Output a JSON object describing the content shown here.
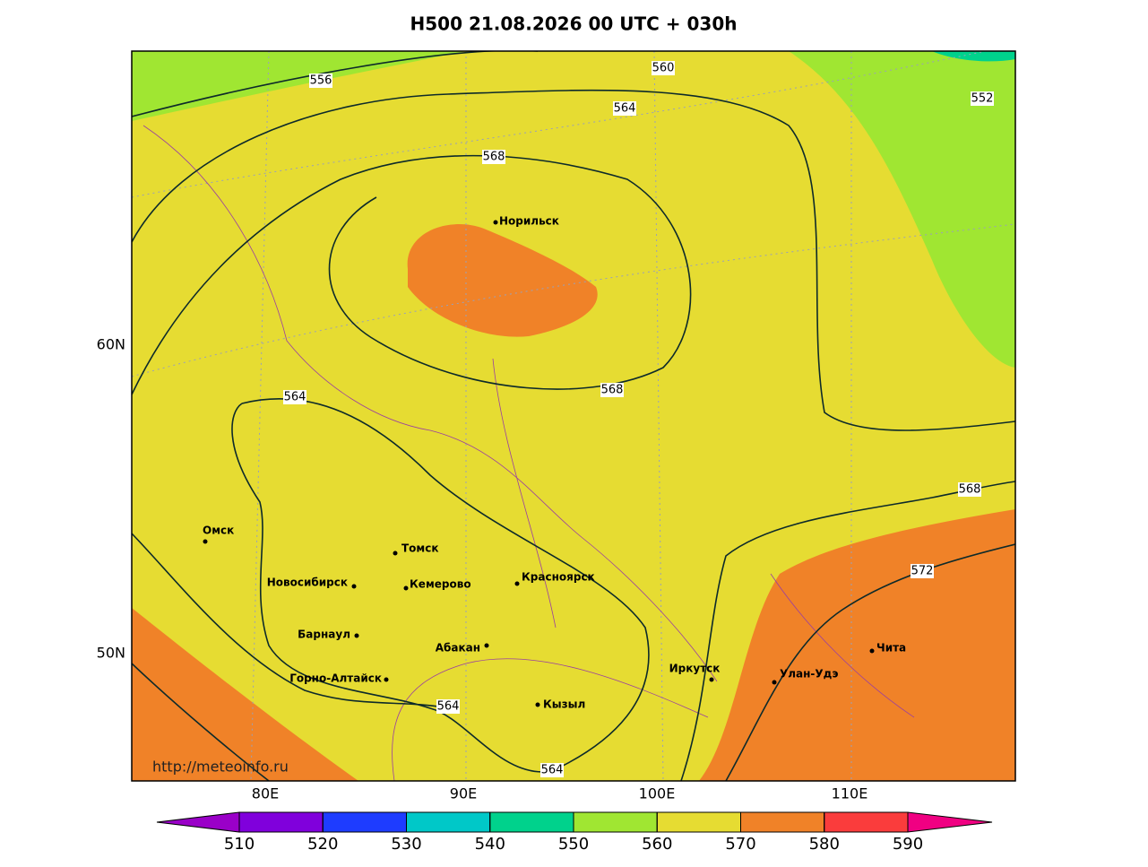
{
  "title": "H500  21.08.2026 00 UTC + 030h",
  "map": {
    "lat_labels": [
      "60N",
      "50N"
    ],
    "lon_labels": [
      "80E",
      "90E",
      "100E",
      "110E"
    ],
    "contour_labels": [
      "556",
      "560",
      "564",
      "552",
      "568",
      "568",
      "564",
      "568",
      "572",
      "564",
      "564"
    ],
    "cities": [
      "Норильск",
      "Омск",
      "Томск",
      "Новосибирск",
      "Кемерово",
      "Красноярск",
      "Барнаул",
      "Абакан",
      "Горно-Алтайск",
      "Кызыл",
      "Иркутск",
      "Улан-Удэ",
      "Чита"
    ],
    "credit": "http://meteoinfo.ru"
  },
  "colorbar": {
    "ticks": [
      510,
      520,
      530,
      540,
      550,
      560,
      570,
      580,
      590
    ],
    "colors": [
      "#9a00c8",
      "#8000dc",
      "#1e3cff",
      "#00c8c8",
      "#00d28c",
      "#a0e632",
      "#e6dc32",
      "#f08228",
      "#fa3c3c",
      "#f00082"
    ]
  }
}
